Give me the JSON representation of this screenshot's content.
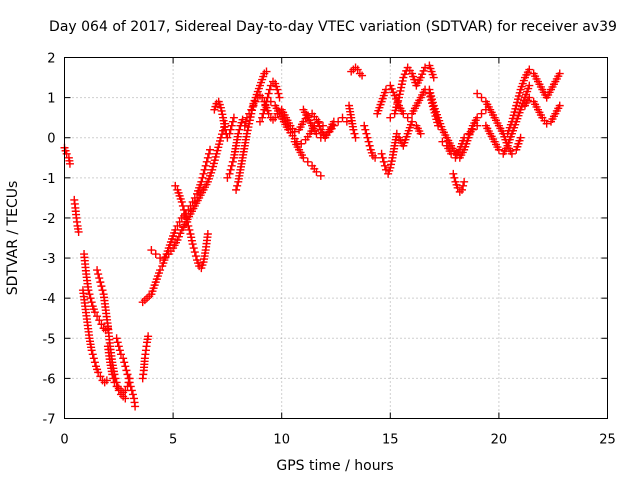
{
  "chart_data": {
    "type": "scatter",
    "title": "Day 064 of 2017, Sidereal Day-to-day VTEC variation (SDTVAR) for receiver av39",
    "xlabel": "GPS time / hours",
    "ylabel": "SDTVAR / TECUs",
    "xlim": [
      0,
      25
    ],
    "ylim": [
      -7,
      2
    ],
    "xticks": [
      0,
      5,
      10,
      15,
      20,
      25
    ],
    "xtick_labels": [
      "0",
      "5",
      "10",
      "15",
      "20",
      "25"
    ],
    "yticks": [
      -7,
      -6,
      -5,
      -4,
      -3,
      -2,
      -1,
      0,
      1,
      2
    ],
    "ytick_labels": [
      "-7",
      "-6",
      "-5",
      "-4",
      "-3",
      "-2",
      "-1",
      "0",
      "1",
      "2"
    ],
    "grid": true,
    "marker": "plus",
    "series": [
      {
        "name": "SDTVAR",
        "color": "#ff0000",
        "segments": [
          {
            "x": [
              0.0,
              0.1,
              0.2,
              0.25
            ],
            "y": [
              -0.25,
              -0.4,
              -0.5,
              -0.65
            ]
          },
          {
            "x": [
              0.45,
              0.5,
              0.55,
              0.6,
              0.65
            ],
            "y": [
              -1.55,
              -1.75,
              -2.0,
              -2.2,
              -2.35
            ]
          },
          {
            "x": [
              0.85,
              0.95,
              1.05,
              1.15,
              1.25,
              1.35,
              1.45,
              1.55,
              1.65,
              1.75,
              1.85,
              1.95
            ],
            "y": [
              -3.8,
              -4.2,
              -4.6,
              -5.0,
              -5.3,
              -5.5,
              -5.7,
              -5.85,
              -5.95,
              -6.05,
              -6.1,
              -6.05
            ]
          },
          {
            "x": [
              0.9,
              1.0,
              1.1,
              1.2,
              1.3,
              1.4,
              1.5,
              1.6,
              1.7,
              1.8,
              1.9,
              2.0
            ],
            "y": [
              -2.9,
              -3.4,
              -3.8,
              -4.0,
              -4.2,
              -4.35,
              -4.45,
              -4.55,
              -4.65,
              -4.75,
              -4.8,
              -4.75
            ]
          },
          {
            "x": [
              1.5,
              1.6,
              1.7,
              1.8,
              1.9,
              2.0,
              2.1,
              2.2,
              2.3,
              2.4,
              2.5,
              2.6,
              2.7,
              2.8
            ],
            "y": [
              -3.3,
              -3.5,
              -3.7,
              -3.9,
              -4.3,
              -4.7,
              -5.2,
              -5.6,
              -5.9,
              -6.1,
              -6.3,
              -6.4,
              -6.45,
              -6.5
            ]
          },
          {
            "x": [
              2.0,
              2.1,
              2.2,
              2.3,
              2.4,
              2.5,
              2.6,
              2.7,
              2.8,
              2.9,
              3.0
            ],
            "y": [
              -5.2,
              -5.6,
              -5.9,
              -6.1,
              -6.2,
              -6.25,
              -6.3,
              -6.35,
              -6.3,
              -6.2,
              -6.0
            ]
          },
          {
            "x": [
              2.4,
              2.5,
              2.6,
              2.7,
              2.8,
              2.9,
              3.0,
              3.1,
              3.2,
              3.25
            ],
            "y": [
              -5.0,
              -5.2,
              -5.4,
              -5.5,
              -5.7,
              -5.9,
              -6.1,
              -6.3,
              -6.5,
              -6.7
            ]
          },
          {
            "x": [
              3.6,
              3.65,
              3.7,
              3.75,
              3.8,
              3.85
            ],
            "y": [
              -6.0,
              -5.8,
              -5.5,
              -5.3,
              -5.1,
              -4.95
            ]
          },
          {
            "x": [
              3.6,
              3.7,
              3.8,
              3.9
            ],
            "y": [
              -4.1,
              -4.05,
              -4.0,
              -3.95
            ]
          },
          {
            "x": [
              4.0,
              4.1,
              4.2,
              4.3,
              4.4,
              4.5,
              4.6,
              4.7,
              4.8,
              4.9,
              5.0,
              5.1,
              5.2,
              5.3,
              5.4,
              5.5,
              5.6,
              5.7,
              5.8,
              5.9,
              6.0,
              6.1,
              6.2,
              6.3,
              6.4,
              6.5,
              6.6,
              6.7
            ],
            "y": [
              -3.9,
              -3.75,
              -3.6,
              -3.45,
              -3.3,
              -3.2,
              -3.05,
              -2.9,
              -2.75,
              -2.6,
              -2.45,
              -2.3,
              -2.2,
              -2.1,
              -2.0,
              -1.95,
              -1.9,
              -1.8,
              -1.7,
              -1.6,
              -1.5,
              -1.4,
              -1.25,
              -1.1,
              -0.9,
              -0.7,
              -0.5,
              -0.3
            ]
          },
          {
            "x": [
              4.0,
              4.2,
              4.4,
              4.6,
              4.8,
              5.0,
              5.2,
              5.4,
              5.6,
              5.8,
              6.0,
              6.2,
              6.4,
              6.6,
              6.8,
              7.0,
              7.2,
              7.4
            ],
            "y": [
              -2.8,
              -2.9,
              -3.0,
              -3.0,
              -2.9,
              -2.75,
              -2.55,
              -2.3,
              -2.1,
              -1.9,
              -1.7,
              -1.5,
              -1.3,
              -1.1,
              -0.8,
              -0.4,
              0.0,
              0.35
            ]
          },
          {
            "x": [
              5.1,
              5.2,
              5.3,
              5.4,
              5.5,
              5.6,
              5.7,
              5.8,
              5.9,
              6.0,
              6.1,
              6.2,
              6.3,
              6.4,
              6.5,
              6.6
            ],
            "y": [
              -1.2,
              -1.3,
              -1.45,
              -1.6,
              -1.8,
              -2.0,
              -2.2,
              -2.4,
              -2.65,
              -2.85,
              -3.05,
              -3.2,
              -3.25,
              -3.1,
              -2.8,
              -2.4
            ]
          },
          {
            "x": [
              6.9,
              7.0,
              7.1,
              7.2,
              7.3,
              7.4,
              7.5,
              7.6,
              7.7,
              7.8
            ],
            "y": [
              0.7,
              0.85,
              0.9,
              0.75,
              0.5,
              0.2,
              0.0,
              0.1,
              0.3,
              0.5
            ]
          },
          {
            "x": [
              7.5,
              7.6,
              7.7,
              7.8,
              7.9,
              8.0,
              8.1,
              8.2
            ],
            "y": [
              -1.0,
              -0.9,
              -0.7,
              -0.5,
              -0.2,
              0.1,
              0.3,
              0.45
            ]
          },
          {
            "x": [
              7.9,
              8.0,
              8.1,
              8.2,
              8.3,
              8.4,
              8.5,
              8.6,
              8.7,
              8.8,
              8.9,
              9.0,
              9.1,
              9.2,
              9.3
            ],
            "y": [
              -1.3,
              -1.1,
              -0.8,
              -0.5,
              -0.2,
              0.1,
              0.35,
              0.6,
              0.85,
              1.0,
              1.15,
              1.3,
              1.45,
              1.6,
              1.65
            ]
          },
          {
            "x": [
              8.3,
              8.4,
              8.5,
              8.6,
              8.7,
              8.8,
              8.9,
              9.0,
              9.1,
              9.2,
              9.3,
              9.4,
              9.5,
              9.6,
              9.7,
              9.8
            ],
            "y": [
              0.3,
              0.5,
              0.6,
              0.7,
              0.8,
              0.9,
              1.0,
              1.05,
              1.0,
              0.9,
              0.75,
              0.6,
              0.5,
              0.45,
              0.5,
              0.6
            ]
          },
          {
            "x": [
              9.0,
              9.1,
              9.2,
              9.3,
              9.4,
              9.5,
              9.6,
              9.7,
              9.8,
              9.9
            ],
            "y": [
              0.4,
              0.5,
              0.7,
              0.9,
              1.1,
              1.3,
              1.4,
              1.35,
              1.2,
              1.0
            ]
          },
          {
            "x": [
              9.5,
              9.7,
              9.9,
              10.1,
              10.3,
              10.5,
              10.7,
              10.9,
              11.1,
              11.3,
              11.5,
              11.7,
              11.9
            ],
            "y": [
              0.9,
              0.8,
              0.6,
              0.4,
              0.2,
              0.05,
              -0.1,
              -0.15,
              -0.05,
              0.1,
              0.3,
              0.4,
              0.3
            ]
          },
          {
            "x": [
              10.0,
              10.2,
              10.4,
              10.6,
              10.8,
              11.0,
              11.2,
              11.4,
              11.6,
              11.8,
              12.0,
              12.2,
              12.4
            ],
            "y": [
              0.7,
              0.5,
              0.3,
              0.15,
              0.2,
              0.4,
              0.55,
              0.6,
              0.45,
              0.2,
              0.0,
              0.2,
              0.4
            ]
          },
          {
            "x": [
              10.6,
              10.8,
              11.0,
              11.2,
              11.4,
              11.6,
              11.8
            ],
            "y": [
              -0.1,
              -0.3,
              -0.5,
              -0.6,
              -0.7,
              -0.85,
              -0.95
            ]
          },
          {
            "x": [
              11.0,
              11.2,
              11.4,
              11.6,
              11.8,
              12.0,
              12.2,
              12.4,
              12.6,
              12.8,
              13.0
            ],
            "y": [
              0.7,
              0.5,
              0.3,
              0.1,
              0.0,
              0.05,
              0.15,
              0.3,
              0.4,
              0.5,
              0.4
            ]
          },
          {
            "x": [
              13.2,
              13.3,
              13.4,
              13.5,
              13.6,
              13.7
            ],
            "y": [
              1.65,
              1.7,
              1.75,
              1.7,
              1.6,
              1.55
            ]
          },
          {
            "x": [
              13.1,
              13.2,
              13.3,
              13.4
            ],
            "y": [
              0.8,
              0.5,
              0.2,
              0.0
            ]
          },
          {
            "x": [
              13.8,
              13.9,
              14.0,
              14.1,
              14.2,
              14.3
            ],
            "y": [
              0.3,
              0.1,
              -0.1,
              -0.3,
              -0.45,
              -0.5
            ]
          },
          {
            "x": [
              14.4,
              14.6,
              14.8,
              15.0,
              15.2,
              15.4,
              15.6,
              15.8,
              16.0,
              16.2,
              16.4,
              16.6,
              16.8,
              17.0,
              17.2
            ],
            "y": [
              0.6,
              0.9,
              1.2,
              1.3,
              1.05,
              0.8,
              0.6,
              0.5,
              0.6,
              0.8,
              1.0,
              1.2,
              1.1,
              0.7,
              0.3
            ]
          },
          {
            "x": [
              14.6,
              14.7,
              14.8,
              14.9,
              15.0,
              15.1,
              15.2,
              15.3
            ],
            "y": [
              -0.4,
              -0.6,
              -0.8,
              -0.9,
              -0.75,
              -0.5,
              -0.2,
              0.1
            ]
          },
          {
            "x": [
              15.0,
              15.2,
              15.4,
              15.6,
              15.8,
              16.0,
              16.2,
              16.4,
              16.6,
              16.8,
              17.0
            ],
            "y": [
              0.5,
              0.6,
              1.0,
              1.5,
              1.75,
              1.6,
              1.3,
              1.5,
              1.75,
              1.8,
              1.5
            ]
          },
          {
            "x": [
              15.4,
              15.6,
              15.8,
              16.0,
              16.2,
              16.4
            ],
            "y": [
              0.0,
              -0.2,
              0.1,
              0.4,
              0.3,
              0.1
            ]
          },
          {
            "x": [
              16.8,
              17.0,
              17.2,
              17.4,
              17.6,
              17.8,
              18.0,
              18.2,
              18.4,
              18.6,
              18.8,
              19.0,
              19.2,
              19.4
            ],
            "y": [
              1.2,
              0.8,
              0.5,
              0.2,
              0.0,
              -0.2,
              -0.4,
              -0.5,
              -0.3,
              0.0,
              0.3,
              0.5,
              0.6,
              0.7
            ]
          },
          {
            "x": [
              17.4,
              17.6,
              17.8,
              18.0,
              18.2,
              18.4,
              18.6,
              18.8,
              19.0
            ],
            "y": [
              -0.1,
              -0.2,
              -0.4,
              -0.5,
              -0.3,
              0.0,
              0.1,
              0.2,
              0.3
            ]
          },
          {
            "x": [
              17.9,
              18.0,
              18.1,
              18.2,
              18.3,
              18.4
            ],
            "y": [
              -0.9,
              -1.1,
              -1.25,
              -1.35,
              -1.3,
              -1.1
            ]
          },
          {
            "x": [
              19.0,
              19.2,
              19.4,
              19.6,
              19.8,
              20.0,
              20.2,
              20.4,
              20.6,
              20.8,
              21.0
            ],
            "y": [
              1.1,
              1.0,
              0.9,
              0.7,
              0.5,
              0.3,
              0.1,
              -0.2,
              -0.4,
              -0.3,
              0.0
            ]
          },
          {
            "x": [
              19.4,
              19.6,
              19.8,
              20.0,
              20.2,
              20.4,
              20.6,
              20.8,
              21.0,
              21.2,
              21.4
            ],
            "y": [
              0.3,
              0.1,
              -0.1,
              -0.3,
              -0.4,
              -0.2,
              0.1,
              0.4,
              0.7,
              1.0,
              1.3
            ]
          },
          {
            "x": [
              20.4,
              20.6,
              20.8,
              21.0,
              21.2,
              21.4,
              21.6,
              21.8,
              22.0,
              22.2,
              22.4,
              22.6,
              22.8
            ],
            "y": [
              0.1,
              0.4,
              0.8,
              1.2,
              1.5,
              1.7,
              1.6,
              1.4,
              1.2,
              1.0,
              1.2,
              1.4,
              1.6
            ]
          },
          {
            "x": [
              21.2,
              21.4,
              21.6,
              21.8,
              22.0,
              22.2,
              22.4,
              22.6,
              22.8
            ],
            "y": [
              0.8,
              1.0,
              0.9,
              0.7,
              0.5,
              0.35,
              0.4,
              0.6,
              0.8
            ]
          }
        ]
      }
    ]
  }
}
